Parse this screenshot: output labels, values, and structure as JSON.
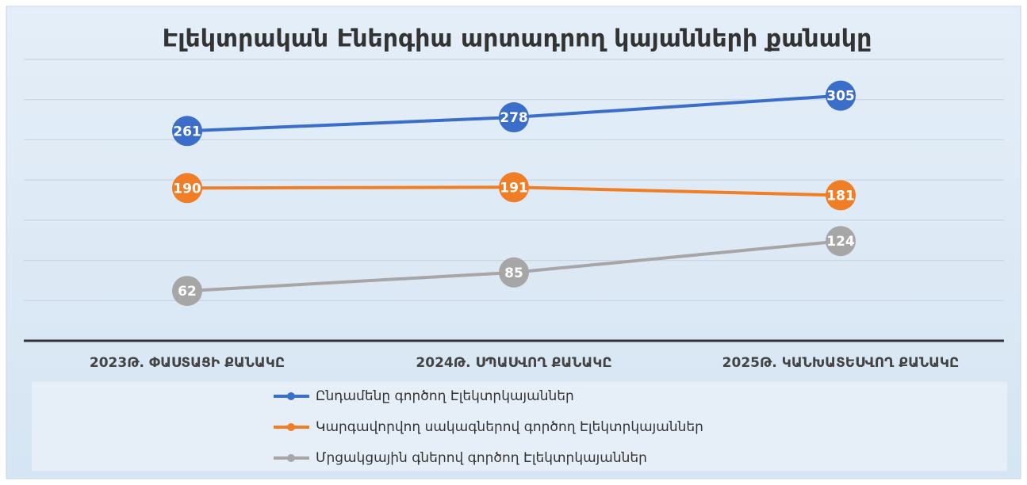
{
  "chart_data": {
    "type": "line",
    "title": "Էլեկտրական Էներգիա արտադրող կայանների քանակը",
    "categories": [
      "2023Թ. ՓԱՍՏԱՑԻ ՔԱՆԱԿԸ",
      "2024Թ. ՍՊԱՍՎՈՂ ՔԱՆԱԿԸ",
      "2025Թ. ԿԱՆԽԱՏԵՍՎՈՂ ՔԱՆԱԿԸ"
    ],
    "series": [
      {
        "name": "Ընդամենը գործող Էլեկտրկայաններ",
        "color": "#3a6ec8",
        "values": [
          261,
          278,
          305
        ]
      },
      {
        "name": "Կարգավորվող սակագներով գործող Էլեկտրկայաններ",
        "color": "#f07e26",
        "values": [
          190,
          191,
          181
        ]
      },
      {
        "name": "Մրցակցային գներով գործող Էլեկտրկայաններ",
        "color": "#a6a6a6",
        "values": [
          62,
          85,
          124
        ]
      }
    ],
    "ylim": [
      0,
      350
    ],
    "yticks": [
      50,
      100,
      150,
      200,
      250,
      300,
      350
    ],
    "grid": true,
    "legend": "bottom"
  }
}
